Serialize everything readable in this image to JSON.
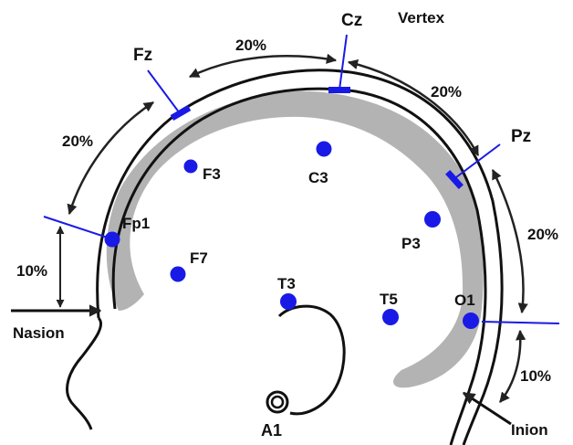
{
  "title": "Vertex",
  "colors": {
    "electrode": "#1a1ae6",
    "marker": "#1a1ae6",
    "outline": "#111111",
    "cortex": "#b3b3b3",
    "arrow": "#222222"
  },
  "electrodes": {
    "fp1": "Fp1",
    "f7": "F7",
    "f3": "F3",
    "c3": "C3",
    "t3": "T3",
    "t5": "T5",
    "p3": "P3",
    "o1": "O1",
    "a1": "A1"
  },
  "midline": {
    "fz": "Fz",
    "cz": "Cz",
    "pz": "Pz"
  },
  "landmarks": {
    "nasion": "Nasion",
    "inion": "Inion"
  },
  "intervals": {
    "fp1_fz": "20%",
    "fz_cz": "20%",
    "cz_pz": "20%",
    "pz_o1": "20%",
    "nasion_fp1": "10%",
    "o1_inion": "10%"
  }
}
